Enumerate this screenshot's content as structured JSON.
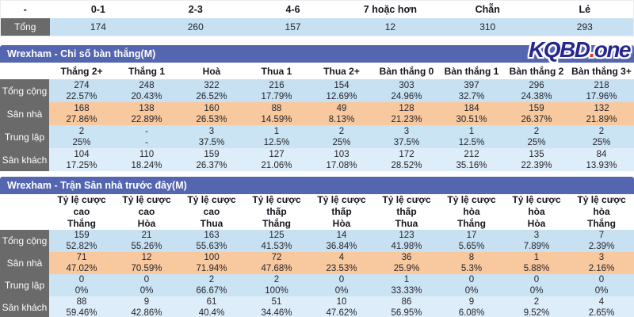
{
  "colors": {
    "bar-bg": "#5566b0",
    "label-bg": "#6a6a6a",
    "row-total": "#c7e1f3",
    "row-home": "#f8c89e",
    "row-neutral": "#cbe4f3",
    "row-away": "#ddedf9",
    "logo-navy": "#27268e",
    "logo-red": "#e0352f"
  },
  "logo": {
    "main": "KQBD",
    "dot": ".",
    "suffix": "one"
  },
  "summary_table": {
    "headers": [
      "-",
      "0-1",
      "2-3",
      "4-6",
      "7 hoặc hơn",
      "Chẵn",
      "Lẻ"
    ],
    "row_label": "Tổng",
    "values": [
      "174",
      "260",
      "157",
      "12",
      "310",
      "293"
    ]
  },
  "goals_table": {
    "title": "Wrexham - Chỉ số bàn thắng(M)",
    "columns": [
      "Thắng 2+",
      "Thắng 1",
      "Hoà",
      "Thua 1",
      "Thua 2+",
      "Bàn thắng 0",
      "Bàn thắng 1",
      "Bàn thắng 2",
      "Bàn thắng 3+"
    ],
    "rows": [
      {
        "key": "total",
        "label": "Tổng cộng",
        "counts": [
          "274",
          "248",
          "322",
          "216",
          "154",
          "303",
          "397",
          "296",
          "218"
        ],
        "percents": [
          "22.57%",
          "20.43%",
          "26.52%",
          "17.79%",
          "12.69%",
          "24.96%",
          "32.7%",
          "24.38%",
          "17.96%"
        ]
      },
      {
        "key": "home",
        "label": "Sân nhà",
        "counts": [
          "168",
          "138",
          "160",
          "88",
          "49",
          "128",
          "184",
          "159",
          "132"
        ],
        "percents": [
          "27.86%",
          "22.89%",
          "26.53%",
          "14.59%",
          "8.13%",
          "21.23%",
          "30.51%",
          "26.37%",
          "21.89%"
        ]
      },
      {
        "key": "neutral",
        "label": "Trung lập",
        "counts": [
          "2",
          "-",
          "3",
          "1",
          "2",
          "3",
          "1",
          "2",
          "2"
        ],
        "percents": [
          "25%",
          "-",
          "37.5%",
          "12.5%",
          "25%",
          "37.5%",
          "12.5%",
          "25%",
          "25%"
        ]
      },
      {
        "key": "away",
        "label": "Sân khách",
        "counts": [
          "104",
          "110",
          "159",
          "127",
          "103",
          "172",
          "212",
          "135",
          "84"
        ],
        "percents": [
          "17.25%",
          "18.24%",
          "26.37%",
          "21.06%",
          "17.08%",
          "28.52%",
          "35.16%",
          "22.39%",
          "13.93%"
        ]
      }
    ]
  },
  "home_table": {
    "title": "Wrexham - Trận Sân nhà trước đây(M)",
    "columns": [
      {
        "l1": "Tỷ lệ cược cao",
        "l2": "Thắng"
      },
      {
        "l1": "Tỷ lệ cược cao",
        "l2": "Hòa"
      },
      {
        "l1": "Tỷ lệ cược cao",
        "l2": "Thua"
      },
      {
        "l1": "Tỷ lệ cược thấp",
        "l2": "Thắng"
      },
      {
        "l1": "Tỷ lệ cược thấp",
        "l2": "Hòa"
      },
      {
        "l1": "Tỷ lệ cược thấp",
        "l2": "Thua"
      },
      {
        "l1": "Tỷ lệ cược hòa",
        "l2": "Thắng"
      },
      {
        "l1": "Tỷ lệ cược hòa",
        "l2": "Hòa"
      },
      {
        "l1": "Tỷ lệ cược hòa",
        "l2": "Thắng"
      }
    ],
    "rows": [
      {
        "key": "total",
        "label": "Tổng cộng",
        "counts": [
          "159",
          "21",
          "163",
          "125",
          "14",
          "123",
          "17",
          "3",
          "7"
        ],
        "percents": [
          "52.82%",
          "55.26%",
          "55.63%",
          "41.53%",
          "36.84%",
          "41.98%",
          "5.65%",
          "7.89%",
          "2.39%"
        ]
      },
      {
        "key": "home",
        "label": "Sân nhà",
        "counts": [
          "71",
          "12",
          "100",
          "72",
          "4",
          "36",
          "8",
          "1",
          "3"
        ],
        "percents": [
          "47.02%",
          "70.59%",
          "71.94%",
          "47.68%",
          "23.53%",
          "25.9%",
          "5.3%",
          "5.88%",
          "2.16%"
        ]
      },
      {
        "key": "neutral",
        "label": "Trung lập",
        "counts": [
          "0",
          "0",
          "2",
          "2",
          "0",
          "1",
          "0",
          "0",
          "0"
        ],
        "percents": [
          "0%",
          "0%",
          "66.67%",
          "100%",
          "0%",
          "33.33%",
          "0%",
          "0%",
          "0%"
        ]
      },
      {
        "key": "away",
        "label": "Sân khách",
        "counts": [
          "88",
          "9",
          "61",
          "51",
          "10",
          "86",
          "9",
          "2",
          "4"
        ],
        "percents": [
          "59.46%",
          "42.86%",
          "40.4%",
          "34.46%",
          "47.62%",
          "56.95%",
          "6.08%",
          "9.52%",
          "2.65%"
        ]
      }
    ]
  }
}
